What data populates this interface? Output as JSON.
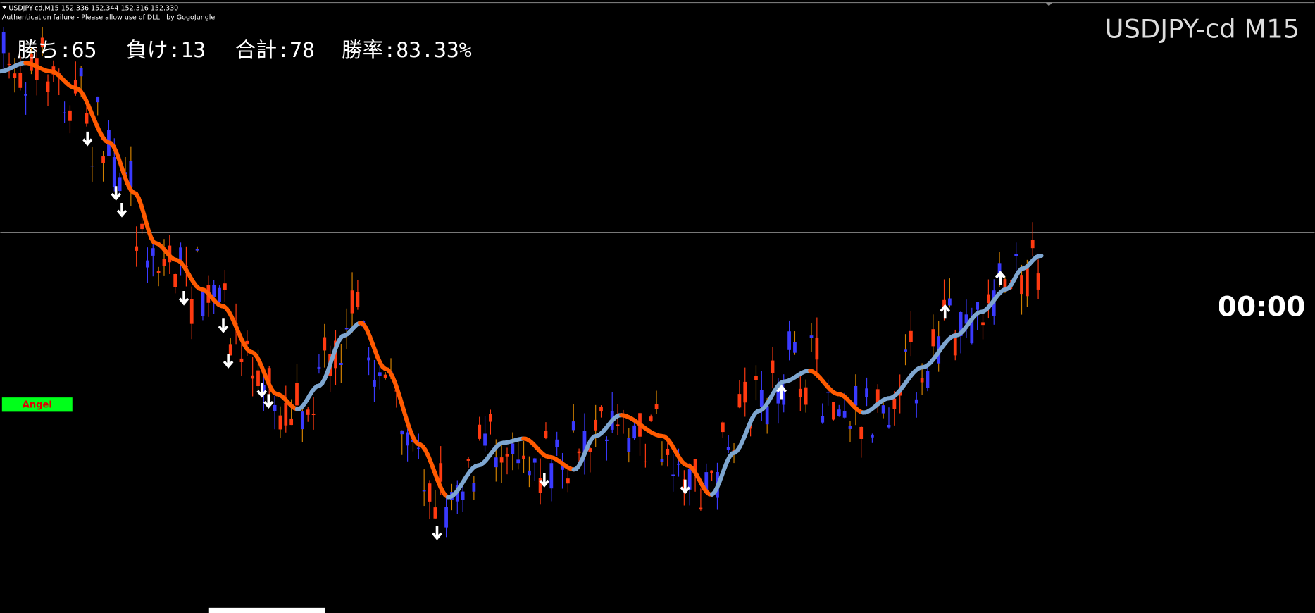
{
  "window": {
    "symbol_line": "USDJPY-cd,M15  152.336 152.344 152.316 152.330",
    "status": "Authentication failure - Please allow use of DLL : by GogoJungle",
    "stats": [
      "勝ち:65",
      "負け:13",
      "合計:78",
      "勝率:83.33%"
    ],
    "chart_title": "USDJPY-cd M15",
    "timer": "00:00",
    "button": "Angel"
  }
}
